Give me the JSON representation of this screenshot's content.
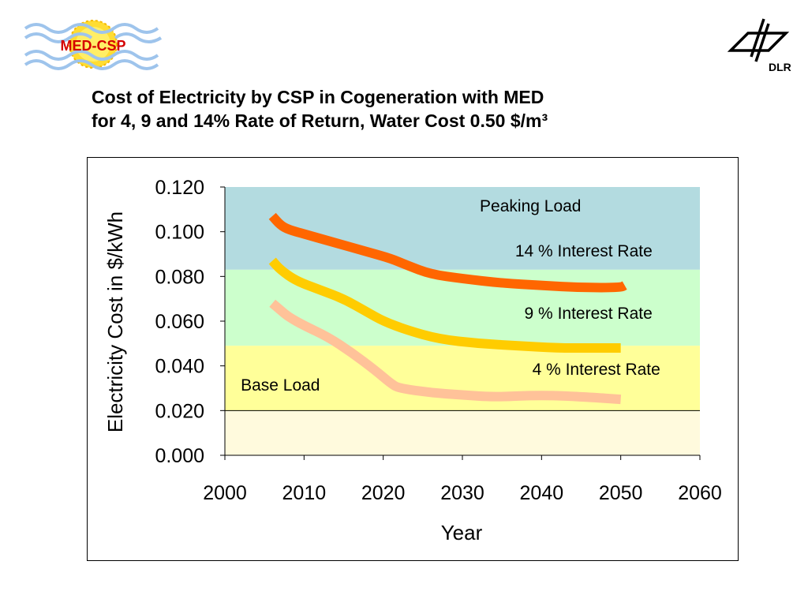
{
  "header": {
    "logo_left_text": "MED-CSP",
    "logo_right_text": "DLR",
    "title_line1": "Cost of Electricity by CSP in Cogeneration with MED",
    "title_line2": "for 4, 9 and 14% Rate of Return, Water Cost 0.50 $/m³"
  },
  "colors": {
    "band_peak": "#b3dbe0",
    "band_mid": "#ccffcc",
    "band_base": "#ffff99",
    "band_bottom": "#fffadd",
    "series_14": "#ff6600",
    "series_9": "#ffcc00",
    "series_4": "#ffc299",
    "logo_text": "#d40000",
    "logo_wave": "#9ec4ec",
    "logo_sun": "#ffdd33"
  },
  "chart_data": {
    "type": "line",
    "xlabel": "Year",
    "ylabel": "Electricity Cost in $/kWh",
    "xlim": [
      2000,
      2060
    ],
    "ylim": [
      0,
      0.12
    ],
    "x_ticks": [
      "2000",
      "2010",
      "2020",
      "2030",
      "2040",
      "2050",
      "2060"
    ],
    "y_ticks": [
      "0.000",
      "0.020",
      "0.040",
      "0.060",
      "0.080",
      "0.100",
      "0.120"
    ],
    "bands": [
      {
        "label": "Peaking Load",
        "from": 0.083,
        "to": 0.12
      },
      {
        "label": "",
        "from": 0.049,
        "to": 0.083
      },
      {
        "label": "Base Load",
        "from": 0.02,
        "to": 0.049
      },
      {
        "label": "",
        "from": 0,
        "to": 0.02
      }
    ],
    "series": [
      {
        "name": "14 % Interest Rate",
        "x": [
          2006,
          2007,
          2008,
          2010,
          2014,
          2018,
          2021,
          2023,
          2026,
          2030,
          2035,
          2040,
          2045,
          2050,
          2050.5
        ],
        "y": [
          0.107,
          0.103,
          0.101,
          0.099,
          0.095,
          0.091,
          0.088,
          0.085,
          0.081,
          0.079,
          0.077,
          0.076,
          0.075,
          0.075,
          0.076
        ]
      },
      {
        "name": "9 % Interest Rate",
        "x": [
          2006,
          2007,
          2009,
          2012,
          2015,
          2018,
          2020,
          2023,
          2027,
          2032,
          2037,
          2042,
          2046,
          2050
        ],
        "y": [
          0.087,
          0.083,
          0.078,
          0.074,
          0.07,
          0.064,
          0.06,
          0.056,
          0.052,
          0.05,
          0.049,
          0.048,
          0.048,
          0.048
        ]
      },
      {
        "name": "4 % Interest Rate",
        "x": [
          2006,
          2007,
          2008,
          2010,
          2013,
          2016,
          2019,
          2021,
          2022,
          2026,
          2030,
          2034,
          2040,
          2046,
          2050
        ],
        "y": [
          0.068,
          0.065,
          0.062,
          0.058,
          0.053,
          0.046,
          0.038,
          0.032,
          0.03,
          0.028,
          0.027,
          0.026,
          0.027,
          0.026,
          0.025
        ]
      }
    ],
    "annotations": [
      {
        "text": "Peaking Load",
        "x": 2045,
        "y": 0.109
      },
      {
        "text": "14 % Interest Rate",
        "x": 2054,
        "y": 0.089
      },
      {
        "text": "9 % Interest Rate",
        "x": 2054,
        "y": 0.061
      },
      {
        "text": "4 % Interest Rate",
        "x": 2055,
        "y": 0.036
      },
      {
        "text": "Base Load",
        "x": 2002,
        "y": 0.029
      }
    ],
    "grid": false
  }
}
